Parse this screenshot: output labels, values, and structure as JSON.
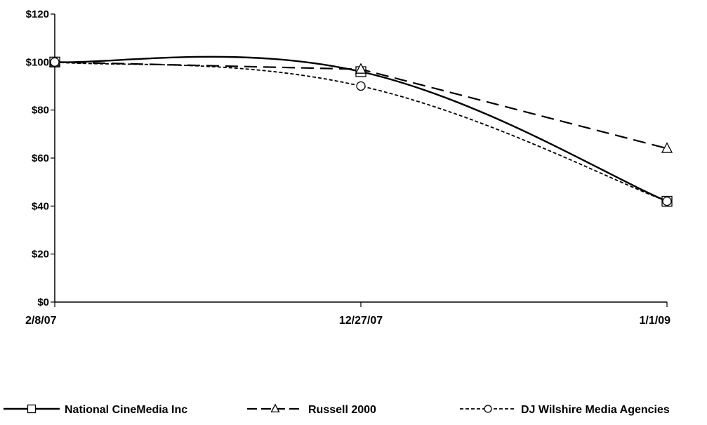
{
  "chart_data": {
    "type": "line",
    "title": "",
    "xlabel": "",
    "ylabel": "",
    "categories": [
      "2/8/07",
      "12/27/07",
      "1/1/09"
    ],
    "y_ticks": [
      "$0",
      "$20",
      "$40",
      "$60",
      "$80",
      "$100",
      "$120"
    ],
    "ylim": [
      0,
      120
    ],
    "grid": false,
    "legend_position": "bottom",
    "series": [
      {
        "name": "National CineMedia Inc",
        "values": [
          100,
          96,
          42
        ],
        "marker": "square",
        "dash": "solid",
        "color": "#000000"
      },
      {
        "name": "Russell 2000",
        "values": [
          100,
          97,
          64
        ],
        "marker": "triangle",
        "dash": "long-dash",
        "color": "#000000"
      },
      {
        "name": "DJ Wilshire Media Agencies",
        "values": [
          100,
          90,
          42
        ],
        "marker": "circle",
        "dash": "short-dash",
        "color": "#000000"
      }
    ]
  }
}
